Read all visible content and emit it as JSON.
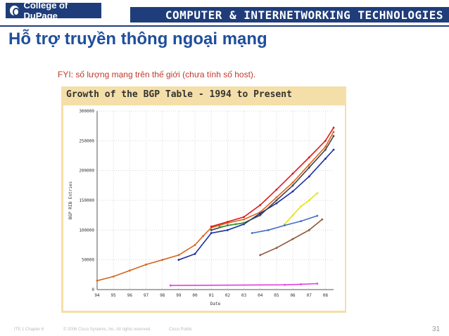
{
  "header": {
    "logo_text": "College of DuPage",
    "banner_text": "COMPUTER & INTERNETWORKING TECHNOLOGIES",
    "brand_color": "#1f3d7a"
  },
  "slide": {
    "title": "Hỗ trợ truyền thông ngoại mạng",
    "fyi": "FYI: số lượng mạng trên thế giới (chưa tính số host).",
    "page_number": "31"
  },
  "footer": {
    "chapter": "ITE 1 Chapter 6",
    "copyright": "© 2006 Cisco Systems, Inc. All rights reserved.",
    "classification": "Cisco Public"
  },
  "chart_data": {
    "type": "scatter",
    "title": "Growth of the BGP Table - 1994 to Present",
    "xlabel": "Date",
    "ylabel": "BGP RIB Entries",
    "ylim": [
      0,
      300000
    ],
    "xlim": [
      1994,
      2008.5
    ],
    "x_ticks": [
      "94",
      "95",
      "96",
      "97",
      "98",
      "99",
      "00",
      "01",
      "02",
      "03",
      "04",
      "05",
      "06",
      "07",
      "08"
    ],
    "y_ticks": [
      "0",
      "50000",
      "100000",
      "150000",
      "200000",
      "250000",
      "300000"
    ],
    "grid": true,
    "series": [
      {
        "color": "#d7641e",
        "x": [
          1994.0,
          1995.0,
          1996.0,
          1997.0,
          1998.0,
          1999.0,
          2000.0,
          2000.5,
          2001.0,
          2001.5,
          2002.0,
          2003.0,
          2004.0,
          2005.0,
          2006.0,
          2007.0,
          2008.0,
          2008.5
        ],
        "values": [
          15000,
          22000,
          32000,
          42000,
          50000,
          58000,
          75000,
          90000,
          104000,
          108000,
          112000,
          118000,
          130000,
          155000,
          180000,
          210000,
          240000,
          265000
        ]
      },
      {
        "color": "#e01818",
        "x": [
          2001.0,
          2002.0,
          2003.0,
          2004.0,
          2005.0,
          2006.0,
          2007.0,
          2008.0,
          2008.5
        ],
        "values": [
          106000,
          114000,
          122000,
          142000,
          168000,
          195000,
          222000,
          250000,
          272000
        ]
      },
      {
        "color": "#1a2f9e",
        "x": [
          1999.0,
          2000.0,
          2001.0,
          2002.0,
          2003.0,
          2004.0,
          2005.0,
          2006.0,
          2007.0,
          2008.0,
          2008.5
        ],
        "values": [
          50000,
          60000,
          95000,
          100000,
          110000,
          128000,
          145000,
          165000,
          190000,
          220000,
          235000
        ]
      },
      {
        "color": "#444444",
        "x": [
          2001.0,
          2002.0,
          2003.0,
          2004.0,
          2005.0,
          2006.0,
          2007.0,
          2008.0,
          2008.5
        ],
        "values": [
          100000,
          108000,
          112000,
          125000,
          150000,
          175000,
          205000,
          235000,
          258000
        ]
      },
      {
        "color": "#e6e600",
        "x": [
          2005.5,
          2006.0,
          2006.5,
          2007.0,
          2007.5
        ],
        "values": [
          110000,
          125000,
          140000,
          150000,
          162000
        ]
      },
      {
        "color": "#8c5a3c",
        "x": [
          2004.0,
          2005.0,
          2006.0,
          2007.0,
          2007.8
        ],
        "values": [
          58000,
          70000,
          85000,
          100000,
          118000
        ]
      },
      {
        "color": "#3f6fbf",
        "x": [
          2003.5,
          2004.5,
          2005.5,
          2006.5,
          2007.5
        ],
        "values": [
          95000,
          100000,
          108000,
          115000,
          124000
        ]
      },
      {
        "color": "#2e9c2e",
        "x": [
          2001.5,
          2002.5,
          2003.0
        ],
        "values": [
          105000,
          110000,
          112000
        ]
      },
      {
        "color": "#e040e0",
        "x": [
          1998.5,
          2005.5,
          2006.5,
          2007.5
        ],
        "values": [
          7000,
          8000,
          9000,
          10000
        ]
      }
    ]
  }
}
